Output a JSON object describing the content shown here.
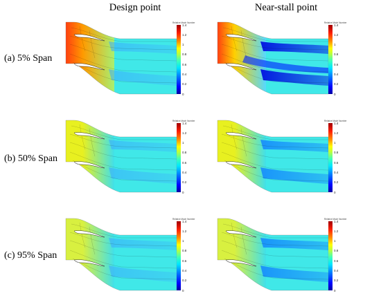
{
  "headers": [
    "Design point",
    "Near-stall point"
  ],
  "rows": [
    "(a) 5% Span",
    "(b) 50% Span",
    "(c) 95% Span"
  ],
  "colorbar": {
    "title": "Relative Mach Number",
    "ticks": [
      "1.4",
      "1.2",
      "1",
      "0.8",
      "0.6",
      "0.4",
      "0.2",
      "0"
    ]
  }
}
